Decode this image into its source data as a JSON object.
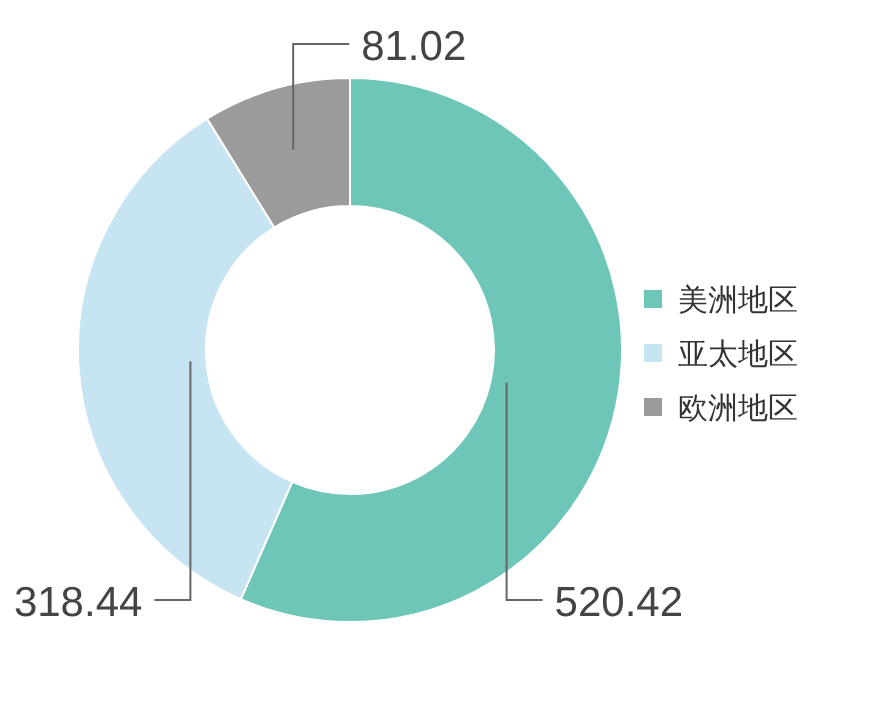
{
  "chart_data": {
    "type": "donut",
    "categories": [
      "美洲地区",
      "亚太地区",
      "欧洲地区"
    ],
    "values": [
      520.42,
      318.44,
      81.02
    ],
    "colors": [
      "#6dc6b7",
      "#c6e4f1",
      "#9b9b9b"
    ],
    "data_labels": true,
    "legend": "right"
  }
}
